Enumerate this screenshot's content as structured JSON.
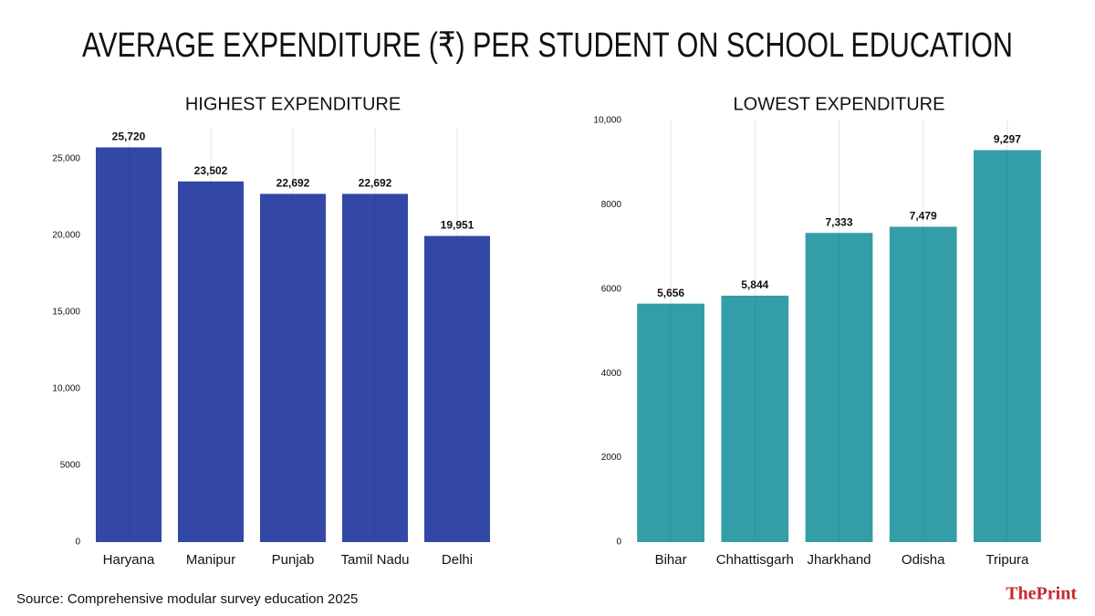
{
  "title": "AVERAGE EXPENDITURE (₹) PER STUDENT ON SCHOOL EDUCATION",
  "source": "Source: Comprehensive modular survey education 2025",
  "logo": "ThePrint",
  "chart_data": [
    {
      "type": "bar",
      "title": "HIGHEST EXPENDITURE",
      "categories": [
        "Haryana",
        "Manipur",
        "Punjab",
        "Tamil Nadu",
        "Delhi"
      ],
      "values": [
        25720,
        23502,
        22692,
        22692,
        19951
      ],
      "value_labels": [
        "25,720",
        "23,502",
        "22,692",
        "22,692",
        "19,951"
      ],
      "color": "#3347a6",
      "ylim": [
        0,
        27000
      ],
      "yticks": [
        0,
        5000,
        {
          "value": 10000,
          "label": "10,000"
        },
        {
          "value": 15000,
          "label": "15,000"
        },
        {
          "value": 20000,
          "label": "20,000"
        },
        {
          "value": 25000,
          "label": "25,000"
        }
      ],
      "grid": "x"
    },
    {
      "type": "bar",
      "title": "LOWEST EXPENDITURE",
      "categories": [
        "Bihar",
        "Chhattisgarh",
        "Jharkhand",
        "Odisha",
        "Tripura"
      ],
      "values": [
        5656,
        5844,
        7333,
        7479,
        9297
      ],
      "value_labels": [
        "5,656",
        "5,844",
        "7,333",
        "7,479",
        "9,297"
      ],
      "color": "#339ea8",
      "ylim": [
        0,
        10000
      ],
      "yticks": [
        0,
        2000,
        4000,
        6000,
        8000,
        {
          "value": 10000,
          "label": "10,000"
        }
      ],
      "grid": "x"
    }
  ]
}
